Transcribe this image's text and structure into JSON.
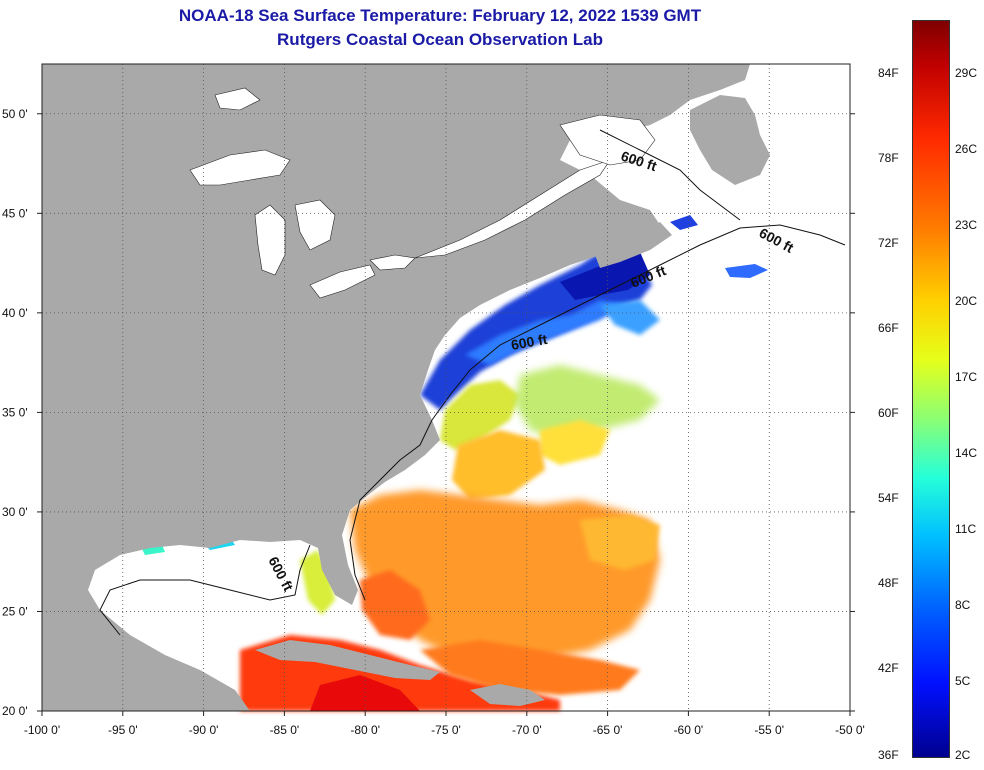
{
  "title": {
    "line1": "NOAA-18 Sea Surface Temperature:  February 12, 2022 1539 GMT",
    "line2": "Rutgers Coastal Ocean Observation Lab"
  },
  "chart_data": {
    "type": "heatmap",
    "x_axis": {
      "range": [
        -100,
        -50
      ],
      "ticks": [
        "-100 0'",
        "-95 0'",
        "-90 0'",
        "-85 0'",
        "-80 0'",
        "-75 0'",
        "-70 0'",
        "-65 0'",
        "-60 0'",
        "-55 0'",
        "-50 0'"
      ]
    },
    "y_axis": {
      "range": [
        20,
        52.5
      ],
      "ticks": [
        "20 0'",
        "25 0'",
        "30 0'",
        "35 0'",
        "40 0'",
        "45 0'",
        "50 0'"
      ]
    },
    "grid": true,
    "isobath_labels": [
      "600 ft",
      "600 ft",
      "600 ft",
      "600 ft",
      "600 ft"
    ],
    "colorbar": {
      "fahrenheit_labels": [
        "84F",
        "78F",
        "72F",
        "66F",
        "60F",
        "54F",
        "48F",
        "42F",
        "36F"
      ],
      "celsius_labels": [
        "29C",
        "26C",
        "23C",
        "20C",
        "17C",
        "14C",
        "11C",
        "8C",
        "5C",
        "2C"
      ],
      "colors_top_to_bottom": [
        "#7f0000",
        "#d40000",
        "#ff3300",
        "#ff8000",
        "#ffcc00",
        "#e6ff1a",
        "#8cff73",
        "#26ffd9",
        "#00c0ff",
        "#0060ff",
        "#0010ff",
        "#00008f"
      ]
    },
    "colors": {
      "land": "#a9a9a9",
      "no_data": "#ffffff",
      "title": "#1a1aa6"
    }
  }
}
